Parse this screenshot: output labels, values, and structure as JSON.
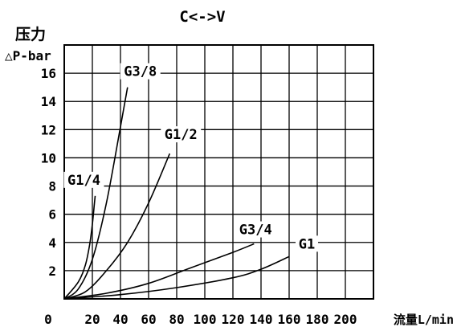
{
  "chart_data": {
    "type": "line",
    "title": "C<->V",
    "ylabel_line1": "压力",
    "ylabel_line2": "△P-bar",
    "xlabel": "流量L/min",
    "xlim": [
      0,
      220
    ],
    "ylim": [
      0,
      18
    ],
    "x_ticks": [
      0,
      20,
      40,
      60,
      80,
      100,
      120,
      140,
      160,
      180,
      200
    ],
    "y_ticks": [
      2,
      4,
      6,
      8,
      10,
      12,
      14,
      16
    ],
    "grid": true,
    "series": [
      {
        "name": "G1/4",
        "x": [
          0,
          10,
          15,
          18,
          20,
          21,
          22
        ],
        "y": [
          0,
          1.2,
          2.4,
          3.8,
          5.3,
          6.3,
          7.3
        ]
      },
      {
        "name": "G3/8",
        "x": [
          0,
          10,
          20,
          30,
          40,
          45
        ],
        "y": [
          0,
          0.7,
          2.8,
          6.8,
          12.2,
          15.0
        ]
      },
      {
        "name": "G1/2",
        "x": [
          0,
          15,
          30,
          45,
          60,
          75
        ],
        "y": [
          0,
          0.5,
          2.0,
          4.0,
          6.8,
          10.3
        ]
      },
      {
        "name": "G3/4",
        "x": [
          0,
          30,
          60,
          90,
          120,
          135
        ],
        "y": [
          0,
          0.4,
          1.1,
          2.2,
          3.3,
          3.9
        ]
      },
      {
        "name": "G1",
        "x": [
          0,
          40,
          80,
          120,
          140,
          160
        ],
        "y": [
          0,
          0.3,
          0.8,
          1.5,
          2.1,
          3.0
        ]
      }
    ]
  }
}
